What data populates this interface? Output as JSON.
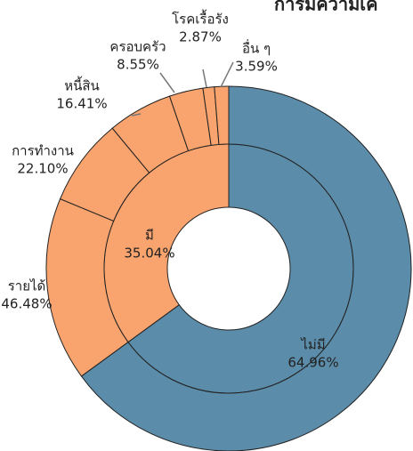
{
  "chart_data": {
    "type": "nested-donut",
    "title": "การมีความเค",
    "inner": {
      "categories": [
        "ไม่มี",
        "มี"
      ],
      "values": [
        64.96,
        35.04
      ],
      "value_labels": [
        "64.96%",
        "35.04%"
      ],
      "colors": [
        "#5b8ca9",
        "#f9a46e"
      ]
    },
    "outer": {
      "parent": 1,
      "categories": [
        "รายได้",
        "การทำงาน",
        "หนี้สิน",
        "ครอบครัว",
        "โรคเรื้อรัง",
        "อื่น ๆ"
      ],
      "values": [
        46.48,
        22.1,
        16.41,
        8.55,
        2.87,
        3.59
      ],
      "value_labels": [
        "46.48%",
        "22.10%",
        "16.41%",
        "8.55%",
        "2.87%",
        "3.59%"
      ]
    }
  }
}
